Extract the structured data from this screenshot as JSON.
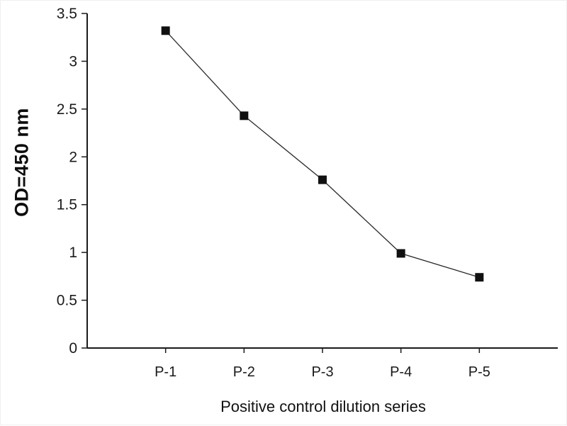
{
  "chart_data": {
    "type": "line",
    "categories": [
      "P-1",
      "P-2",
      "P-3",
      "P-4",
      "P-5"
    ],
    "values": [
      3.32,
      2.43,
      1.76,
      0.99,
      0.74
    ],
    "series": [
      {
        "name": "Positive control",
        "values": [
          3.32,
          2.43,
          1.76,
          0.99,
          0.74
        ]
      }
    ],
    "title": "",
    "xlabel": "Positive control dilution series",
    "ylabel": "OD=450 nm",
    "ylim": [
      0,
      3.5
    ],
    "ytick_step": 0.5,
    "ytick_labels": [
      "0",
      "0.5",
      "1",
      "1.5",
      "2",
      "2.5",
      "3",
      "3.5"
    ],
    "grid": false,
    "legend_position": "none",
    "marker": "square",
    "colors": {
      "axis": "#1a1a1a",
      "line": "#2a2a2a",
      "marker": "#111111",
      "tick_text": "#1a1a1a",
      "background": "#ffffff"
    }
  }
}
